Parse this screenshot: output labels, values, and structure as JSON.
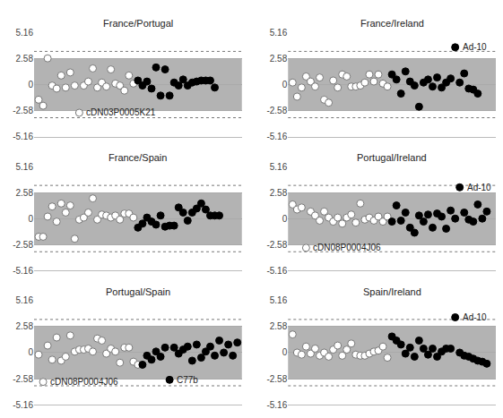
{
  "chart_data": [
    {
      "type": "scatter",
      "title": "France/Portugal",
      "xlim": [
        0,
        46
      ],
      "ylim": [
        -5.16,
        5.16
      ],
      "yticks": [
        -5.16,
        -2.58,
        0,
        2.58,
        5.16
      ],
      "grid": true,
      "tick_labels": "y",
      "band": [
        -2.58,
        2.58
      ],
      "thresholds": [
        -3.29,
        3.29
      ],
      "series": [
        {
          "color": "#ffffff",
          "marker": "circle",
          "x": [
            1,
            2,
            3,
            4,
            5,
            6,
            7,
            8,
            9,
            10,
            11,
            12,
            13,
            14,
            15,
            16,
            17,
            18,
            19,
            20,
            21,
            22
          ],
          "values": [
            -1.5,
            -2.1,
            2.6,
            -0.1,
            -0.4,
            0.9,
            -0.3,
            1.2,
            -0.1,
            -2.8,
            -0.1,
            0.3,
            1.6,
            -0.3,
            0.2,
            -0.2,
            1.5,
            0.1,
            -0.1,
            -0.6,
            0.9,
            0.1
          ]
        },
        {
          "color": "#000000",
          "marker": "circle",
          "x": [
            23,
            24,
            25,
            26,
            27,
            28,
            29,
            30,
            31,
            32,
            33,
            34,
            35,
            36,
            37,
            38,
            39,
            40
          ],
          "values": [
            0.4,
            -0.1,
            0.3,
            -0.4,
            1.7,
            -1.1,
            1.5,
            -1.1,
            0.2,
            -0.1,
            0.5,
            -0.1,
            0.2,
            0.3,
            0.4,
            0.4,
            0.4,
            -0.3
          ]
        }
      ],
      "annotations": [
        {
          "text": "cDN03P0005K21",
          "x": 10,
          "y": -2.8
        }
      ]
    },
    {
      "type": "scatter",
      "title": "France/Ireland",
      "xlim": [
        0,
        46
      ],
      "ylim": [
        -5.16,
        5.16
      ],
      "yticks": [
        -5.16,
        -2.58,
        0,
        2.58,
        5.16
      ],
      "grid": true,
      "tick_labels": "y",
      "band": [
        -2.58,
        2.58
      ],
      "thresholds": [
        -3.29,
        3.29
      ],
      "series": [
        {
          "color": "#ffffff",
          "marker": "circle",
          "x": [
            1,
            2,
            3,
            4,
            5,
            6,
            7,
            8,
            9,
            10,
            11,
            12,
            13,
            14,
            15,
            16,
            17,
            18,
            19,
            20,
            21,
            22
          ],
          "values": [
            0.2,
            -1.2,
            -0.3,
            0.8,
            0.3,
            -0.2,
            0.7,
            -1.5,
            -1.8,
            0.4,
            -0.3,
            1.0,
            0.8,
            -0.2,
            -0.2,
            -0.1,
            0.2,
            1.0,
            0.3,
            1.0,
            0.1,
            -0.2
          ]
        },
        {
          "color": "#000000",
          "marker": "circle",
          "x": [
            23,
            24,
            25,
            26,
            27,
            28,
            29,
            30,
            31,
            32,
            33,
            34,
            35,
            36,
            37,
            38,
            39,
            40,
            41,
            42
          ],
          "values": [
            1.0,
            0.5,
            -0.9,
            1.3,
            0.3,
            -0.1,
            -2.2,
            0.2,
            0.5,
            -0.2,
            0.7,
            -0.3,
            0.2,
            0.6,
            3.7,
            0.2,
            1.1,
            -0.4,
            -0.5,
            -0.9
          ]
        }
      ],
      "annotations": [
        {
          "text": "Ad-10",
          "x": 37,
          "y": 3.7
        }
      ]
    },
    {
      "type": "scatter",
      "title": "France/Spain",
      "xlim": [
        0,
        46
      ],
      "ylim": [
        -5.16,
        5.16
      ],
      "yticks": [
        -5.16,
        -2.58,
        0,
        2.58,
        5.16
      ],
      "grid": true,
      "tick_labels": "y",
      "band": [
        -2.58,
        2.58
      ],
      "thresholds": [
        -3.29,
        3.29
      ],
      "series": [
        {
          "color": "#ffffff",
          "marker": "circle",
          "x": [
            1,
            2,
            3,
            4,
            5,
            6,
            7,
            8,
            9,
            10,
            11,
            12,
            13,
            14,
            15,
            16,
            17,
            18,
            19,
            20,
            21,
            22
          ],
          "values": [
            -1.8,
            -1.8,
            0.2,
            1.2,
            -0.3,
            1.5,
            0.6,
            1.3,
            -2.0,
            -0.1,
            0.1,
            0.6,
            2.0,
            -0.1,
            0.4,
            0.3,
            0.1,
            0.3,
            -0.1,
            0.5,
            0.5,
            0.1
          ]
        },
        {
          "color": "#000000",
          "marker": "circle",
          "x": [
            23,
            24,
            25,
            26,
            27,
            28,
            29,
            30,
            31,
            32,
            33,
            34,
            35,
            36,
            37,
            38,
            39,
            40,
            41
          ],
          "values": [
            -0.9,
            -0.5,
            0.1,
            -0.3,
            -0.6,
            0.3,
            -0.8,
            -0.7,
            -0.7,
            1.1,
            0.6,
            -0.2,
            0.6,
            1.0,
            1.5,
            0.9,
            0.3,
            0.3,
            0.3
          ]
        }
      ],
      "annotations": []
    },
    {
      "type": "scatter",
      "title": "Portugal/Ireland",
      "xlim": [
        0,
        46
      ],
      "ylim": [
        -5.16,
        5.16
      ],
      "yticks": [
        -5.16,
        -2.58,
        0,
        2.58,
        5.16
      ],
      "grid": true,
      "tick_labels": "y",
      "band": [
        -2.58,
        2.58
      ],
      "thresholds": [
        -3.29,
        3.29
      ],
      "series": [
        {
          "color": "#ffffff",
          "marker": "circle",
          "x": [
            1,
            2,
            3,
            4,
            5,
            6,
            7,
            8,
            9,
            10,
            11,
            12,
            13,
            14,
            15,
            16,
            17,
            18,
            19,
            20,
            21,
            22
          ],
          "values": [
            1.4,
            0.9,
            1.1,
            -2.9,
            0.7,
            0.3,
            -0.2,
            0.7,
            0.1,
            -0.3,
            0.1,
            -0.5,
            0.1,
            0.4,
            -0.4,
            1.5,
            -0.1,
            0.1,
            -0.2,
            0.2,
            -0.3,
            0.2
          ]
        },
        {
          "color": "#000000",
          "marker": "circle",
          "x": [
            23,
            24,
            25,
            26,
            27,
            28,
            29,
            30,
            31,
            32,
            33,
            34,
            35,
            36,
            37,
            38,
            39,
            40,
            41,
            42,
            43,
            44
          ],
          "values": [
            -0.3,
            1.3,
            -0.2,
            0.6,
            -0.9,
            -1.4,
            0.3,
            -0.3,
            0.4,
            -0.9,
            0.5,
            0.2,
            -1.0,
            0.8,
            0.0,
            3.1,
            0.6,
            -0.1,
            -0.3,
            1.4,
            0.0,
            0.7
          ]
        }
      ],
      "annotations": [
        {
          "text": "cDN08P0004J06",
          "x": 4,
          "y": -2.9
        },
        {
          "text": "Ad-10",
          "x": 38,
          "y": 3.1
        }
      ]
    },
    {
      "type": "scatter",
      "title": "Portugal/Spain",
      "xlim": [
        0,
        46
      ],
      "ylim": [
        -5.16,
        5.16
      ],
      "yticks": [
        -5.16,
        -2.58,
        0,
        2.58,
        5.16
      ],
      "grid": true,
      "tick_labels": "y",
      "band": [
        -2.58,
        2.58
      ],
      "thresholds": [
        -3.29,
        3.29
      ],
      "series": [
        {
          "color": "#ffffff",
          "marker": "circle",
          "x": [
            1,
            2,
            3,
            4,
            5,
            6,
            7,
            8,
            9,
            10,
            11,
            12,
            13,
            14,
            15,
            16,
            17,
            18,
            19,
            20,
            21,
            22,
            23
          ],
          "values": [
            -0.2,
            -2.9,
            0.7,
            -0.7,
            1.5,
            -0.8,
            -0.4,
            1.7,
            0.1,
            0.3,
            0.3,
            0.4,
            0.1,
            1.4,
            1.2,
            -0.1,
            0.4,
            0.1,
            -1.0,
            0.5,
            0.5,
            -0.9,
            -1.2
          ]
        },
        {
          "color": "#000000",
          "marker": "circle",
          "x": [
            24,
            25,
            26,
            27,
            28,
            29,
            30,
            31,
            32,
            33,
            34,
            35,
            36,
            37,
            38,
            39,
            40,
            41,
            42,
            43,
            44,
            45
          ],
          "values": [
            -1.2,
            -0.3,
            -0.7,
            0.1,
            -0.4,
            0.5,
            -2.7,
            0.5,
            -0.1,
            0.3,
            0.6,
            -0.8,
            0.8,
            -0.5,
            0.1,
            0.6,
            -0.3,
            1.2,
            0.0,
            0.8,
            -0.3,
            1.0
          ]
        }
      ],
      "annotations": [
        {
          "text": "cDN08P0004J06",
          "x": 2,
          "y": -2.9
        },
        {
          "text": "C77b",
          "x": 30,
          "y": -2.7
        }
      ]
    },
    {
      "type": "scatter",
      "title": "Spain/Ireland",
      "xlim": [
        0,
        46
      ],
      "ylim": [
        -5.16,
        5.16
      ],
      "yticks": [
        -5.16,
        -2.58,
        0,
        2.58,
        5.16
      ],
      "grid": true,
      "tick_labels": "y",
      "band": [
        -2.58,
        2.58
      ],
      "thresholds": [
        -3.29,
        3.29
      ],
      "series": [
        {
          "color": "#ffffff",
          "marker": "circle",
          "x": [
            1,
            2,
            3,
            4,
            5,
            6,
            7,
            8,
            9,
            10,
            11,
            12,
            13,
            14,
            15,
            16,
            17,
            18,
            19,
            20,
            21,
            22
          ],
          "values": [
            1.8,
            0.0,
            -0.2,
            0.6,
            -0.1,
            0.4,
            -0.3,
            0.0,
            -0.4,
            0.3,
            0.7,
            -0.3,
            0.3,
            0.9,
            -0.2,
            -0.3,
            -0.3,
            -0.1,
            0.1,
            0.2,
            0.6,
            -0.5
          ]
        },
        {
          "color": "#000000",
          "marker": "circle",
          "x": [
            23,
            24,
            25,
            26,
            27,
            28,
            29,
            30,
            31,
            32,
            33,
            34,
            35,
            36,
            37,
            38,
            39,
            40,
            41,
            42,
            43,
            44
          ],
          "values": [
            1.6,
            1.2,
            0.8,
            -0.1,
            0.5,
            -0.4,
            1.2,
            0.4,
            -0.2,
            0.4,
            -0.4,
            0.1,
            0.4,
            0.4,
            3.5,
            0.0,
            -0.3,
            -0.4,
            -0.6,
            -0.8,
            -0.9,
            -1.1
          ]
        }
      ],
      "annotations": [
        {
          "text": "Ad-10",
          "x": 37,
          "y": 3.5
        }
      ]
    }
  ]
}
